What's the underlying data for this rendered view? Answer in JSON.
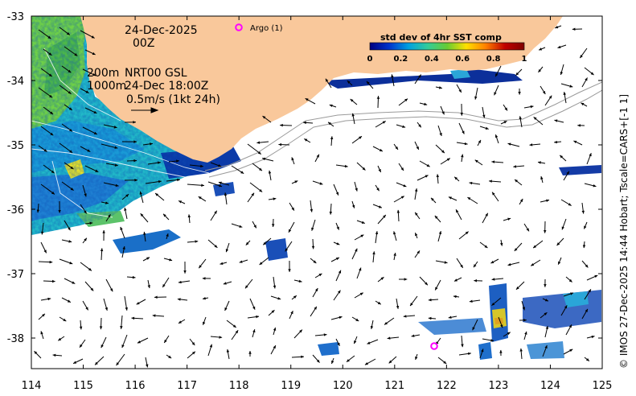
{
  "map": {
    "date_label": "24-Dec-2025",
    "hour_label": "00Z",
    "contour_label_1": "200m",
    "contour_label_2": "1000m",
    "product_label": "NRT00 GSL",
    "product_time": "24-Dec 18:00Z",
    "scale_label": "0.5m/s (1kt 24h)",
    "argo_label": "Argo (1)",
    "colorbar_title": "std dev of 4hr SST comp",
    "colorbar_ticks": [
      "0",
      "0.2",
      "0.4",
      "0.6",
      "0.8",
      "1"
    ],
    "x_ticks": [
      "114",
      "115",
      "116",
      "117",
      "118",
      "119",
      "120",
      "121",
      "122",
      "123",
      "124",
      "125"
    ],
    "y_ticks": [
      "-33",
      "-34",
      "-35",
      "-36",
      "-37",
      "-38"
    ],
    "side_caption": "© IMOS 27-Dec-2025 14:44 Hobart; Tscale=CARS+[-1 1]",
    "colors": {
      "land": "#f9c89b",
      "argo_marker": "#ff00ff",
      "contour": "#9a9a9a",
      "colormap": [
        "#000080",
        "#0033cc",
        "#00a0e0",
        "#33cc99",
        "#66cc33",
        "#ffe000",
        "#ff8000",
        "#c00000",
        "#800000"
      ]
    }
  }
}
